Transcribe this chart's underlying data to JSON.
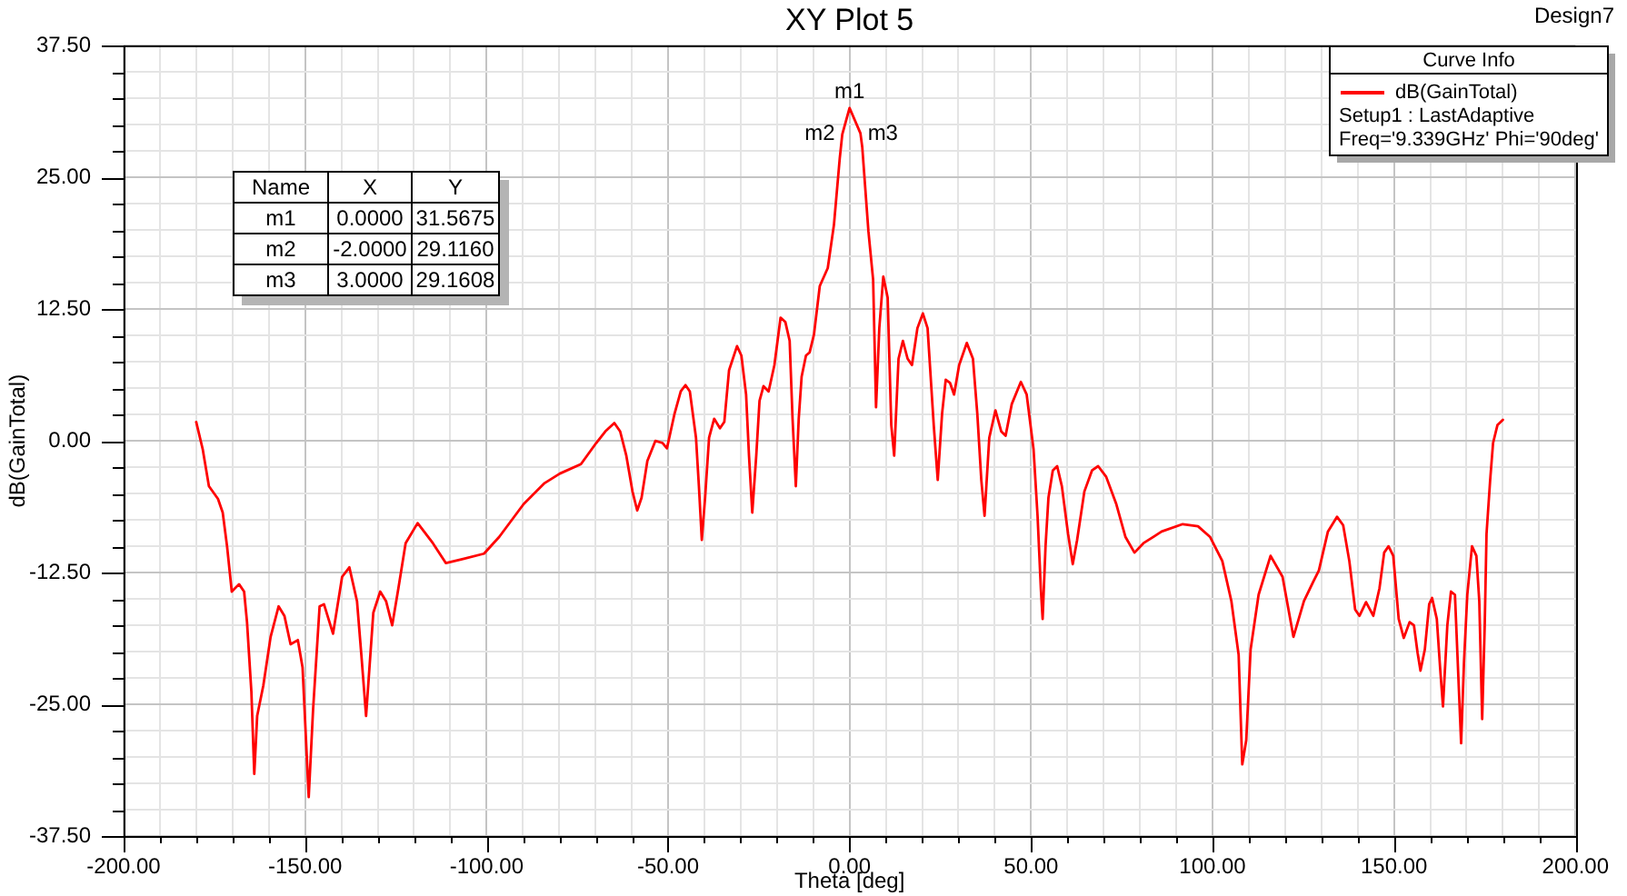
{
  "chart_data": {
    "type": "line",
    "title": "XY Plot 5",
    "subtitle": "Design7",
    "xlabel": "Theta [deg]",
    "ylabel": "dB(GainTotal)",
    "legend_title": "Curve Info",
    "legend": "top right",
    "grid": true,
    "xlim": [
      -200,
      200
    ],
    "ylim": [
      -37.5,
      37.5
    ],
    "xticks": [
      {
        "value": -200,
        "label": "-200.00"
      },
      {
        "value": -190,
        "label": null
      },
      {
        "value": -180,
        "label": null
      },
      {
        "value": -170,
        "label": null
      },
      {
        "value": -160,
        "label": null
      },
      {
        "value": -150,
        "label": "-150.00"
      },
      {
        "value": -140,
        "label": null
      },
      {
        "value": -130,
        "label": null
      },
      {
        "value": -120,
        "label": null
      },
      {
        "value": -110,
        "label": null
      },
      {
        "value": -100,
        "label": "-100.00"
      },
      {
        "value": -90,
        "label": null
      },
      {
        "value": -80,
        "label": null
      },
      {
        "value": -70,
        "label": null
      },
      {
        "value": -60,
        "label": null
      },
      {
        "value": -50,
        "label": "-50.00"
      },
      {
        "value": -40,
        "label": null
      },
      {
        "value": -30,
        "label": null
      },
      {
        "value": -20,
        "label": null
      },
      {
        "value": -10,
        "label": null
      },
      {
        "value": 0,
        "label": "0.00"
      },
      {
        "value": 10,
        "label": null
      },
      {
        "value": 20,
        "label": null
      },
      {
        "value": 30,
        "label": null
      },
      {
        "value": 40,
        "label": null
      },
      {
        "value": 50,
        "label": "50.00"
      },
      {
        "value": 60,
        "label": null
      },
      {
        "value": 70,
        "label": null
      },
      {
        "value": 80,
        "label": null
      },
      {
        "value": 90,
        "label": null
      },
      {
        "value": 100,
        "label": "100.00"
      },
      {
        "value": 110,
        "label": null
      },
      {
        "value": 120,
        "label": null
      },
      {
        "value": 130,
        "label": null
      },
      {
        "value": 140,
        "label": null
      },
      {
        "value": 150,
        "label": "150.00"
      },
      {
        "value": 160,
        "label": null
      },
      {
        "value": 170,
        "label": null
      },
      {
        "value": 180,
        "label": null
      },
      {
        "value": 190,
        "label": null
      },
      {
        "value": 200,
        "label": "200.00"
      }
    ],
    "yticks": [
      {
        "value": -37.5,
        "label": "-37.50"
      },
      {
        "value": -35,
        "label": null
      },
      {
        "value": -32.5,
        "label": null
      },
      {
        "value": -30,
        "label": null
      },
      {
        "value": -27.5,
        "label": null
      },
      {
        "value": -25,
        "label": "-25.00"
      },
      {
        "value": -22.5,
        "label": null
      },
      {
        "value": -20,
        "label": null
      },
      {
        "value": -17.5,
        "label": null
      },
      {
        "value": -15,
        "label": null
      },
      {
        "value": -12.5,
        "label": "-12.50"
      },
      {
        "value": -10,
        "label": null
      },
      {
        "value": -7.5,
        "label": null
      },
      {
        "value": -5,
        "label": null
      },
      {
        "value": -2.5,
        "label": null
      },
      {
        "value": 0,
        "label": "0.00"
      },
      {
        "value": 2.5,
        "label": null
      },
      {
        "value": 5,
        "label": null
      },
      {
        "value": 7.5,
        "label": null
      },
      {
        "value": 10,
        "label": null
      },
      {
        "value": 12.5,
        "label": "12.50"
      },
      {
        "value": 15,
        "label": null
      },
      {
        "value": 17.5,
        "label": null
      },
      {
        "value": 20,
        "label": null
      },
      {
        "value": 22.5,
        "label": null
      },
      {
        "value": 25,
        "label": "25.00"
      },
      {
        "value": 27.5,
        "label": null
      },
      {
        "value": 30,
        "label": null
      },
      {
        "value": 32.5,
        "label": null
      },
      {
        "value": 35,
        "label": null
      },
      {
        "value": 37.5,
        "label": "37.50"
      }
    ],
    "x": [
      -180,
      -178.2,
      -176.5,
      -174,
      -172.7,
      -171.5,
      -170.2,
      -168.2,
      -166.8,
      -166,
      -164.8,
      -164,
      -163.2,
      -161.5,
      -159.5,
      -157.3,
      -155.7,
      -154,
      -152,
      -150.7,
      -149,
      -147.8,
      -146,
      -144.8,
      -142.3,
      -139.8,
      -137.8,
      -135.7,
      -134.5,
      -133.2,
      -131.2,
      -129.3,
      -127.7,
      -126,
      -124.3,
      -122.3,
      -119,
      -114.8,
      -111.2,
      -106.5,
      -100.7,
      -96.5,
      -89.8,
      -84,
      -79.8,
      -74,
      -69.8,
      -67.3,
      -64.8,
      -63.2,
      -61.5,
      -59.8,
      -58.5,
      -57.3,
      -55.7,
      -53.5,
      -51.5,
      -50.3,
      -48.2,
      -46.5,
      -45.2,
      -44,
      -42.3,
      -41.5,
      -40.7,
      -39.8,
      -38.7,
      -37.3,
      -35.7,
      -34.5,
      -33.2,
      -31,
      -29.8,
      -28.5,
      -27.7,
      -26.8,
      -25.7,
      -24.8,
      -23.7,
      -22.3,
      -20.7,
      -19,
      -17.7,
      -16.5,
      -15.7,
      -14.8,
      -14,
      -13.2,
      -12,
      -11,
      -9.8,
      -8.2,
      -6,
      -4.3,
      -2.7,
      -2,
      0,
      3,
      3.5,
      5.2,
      6.5,
      7.3,
      8.2,
      9.3,
      10.5,
      11.5,
      12.3,
      13.5,
      14.7,
      16,
      17.2,
      18.7,
      20.2,
      21.5,
      23.2,
      24.3,
      25.5,
      26.5,
      27.7,
      28.8,
      30.2,
      32.3,
      34,
      35.2,
      36.3,
      37.2,
      38.5,
      40.2,
      41.8,
      43,
      44.7,
      47.2,
      48.8,
      50.7,
      51.8,
      52.7,
      53.2,
      54,
      54.8,
      56,
      57.2,
      58.5,
      60.2,
      61.5,
      62.7,
      64.7,
      66.8,
      68.5,
      70.7,
      73.5,
      76,
      78.5,
      81,
      86,
      91.8,
      96,
      99.3,
      102.7,
      105.2,
      107.2,
      108.2,
      109.3,
      110.5,
      112.7,
      116,
      119.3,
      122.3,
      125.2,
      127.7,
      129.3,
      131.8,
      134.3,
      136,
      137.7,
      139.3,
      140.5,
      142.3,
      144.3,
      146,
      147.3,
      148.5,
      149.8,
      151.3,
      152.7,
      154.3,
      155.5,
      156.5,
      157.3,
      158.5,
      159.7,
      160.5,
      161.8,
      162.7,
      163.5,
      164.7,
      165.7,
      166.8,
      167.7,
      168.5,
      169.3,
      170.2,
      171.5,
      172.7,
      173.5,
      174.3,
      175,
      175.5,
      176.5,
      177.3,
      178.5,
      180
    ],
    "series": [
      {
        "name": "dB(GainTotal)",
        "color": "#ff0000",
        "values": [
          1.8,
          -0.8,
          -4.3,
          -5.5,
          -6.8,
          -10,
          -14.3,
          -13.6,
          -14.3,
          -17.2,
          -23.8,
          -31.6,
          -26.1,
          -23.2,
          -18.6,
          -15.7,
          -16.6,
          -19.3,
          -18.9,
          -21.5,
          -33.8,
          -25.5,
          -15.7,
          -15.5,
          -18.3,
          -12.9,
          -12,
          -15.2,
          -20.3,
          -26.1,
          -16.3,
          -14.3,
          -15.2,
          -17.5,
          -14,
          -9.7,
          -7.8,
          -9.7,
          -11.6,
          -11.2,
          -10.7,
          -9.1,
          -6,
          -4,
          -3.1,
          -2.2,
          -0.2,
          0.9,
          1.7,
          0.9,
          -1.4,
          -4.8,
          -6.6,
          -5.4,
          -1.9,
          0,
          -0.2,
          -0.7,
          2.6,
          4.7,
          5.3,
          4.7,
          0.3,
          -4.3,
          -9.4,
          -5.4,
          0.3,
          2.1,
          1.2,
          1.8,
          6.7,
          9,
          8.1,
          4.4,
          -1.4,
          -6.8,
          -1.4,
          3.8,
          5.2,
          4.7,
          7.2,
          11.7,
          11.3,
          9.5,
          2.1,
          -4.3,
          2.1,
          6.1,
          8.1,
          8.4,
          10.1,
          14.7,
          16.4,
          20.5,
          26.8,
          29.1,
          31.6,
          29.2,
          27.9,
          19.9,
          15.3,
          3.2,
          10.7,
          15.6,
          13.6,
          1.5,
          -1.4,
          7.8,
          9.5,
          7.8,
          7.2,
          10.7,
          12.1,
          10.7,
          1.5,
          -3.7,
          2.6,
          5.8,
          5.5,
          4.4,
          7.2,
          9.3,
          7.8,
          2.6,
          -3.7,
          -7.1,
          0.3,
          2.9,
          0.9,
          0.5,
          3.5,
          5.6,
          4.4,
          -0.8,
          -7.1,
          -14,
          -16.9,
          -10,
          -5.4,
          -2.8,
          -2.4,
          -4.3,
          -8.8,
          -11.7,
          -9.4,
          -4.8,
          -2.8,
          -2.4,
          -3.4,
          -6,
          -9.1,
          -10.6,
          -9.7,
          -8.6,
          -7.9,
          -8.1,
          -9.1,
          -11.4,
          -15.2,
          -20.3,
          -30.7,
          -28.4,
          -19.8,
          -14.6,
          -10.9,
          -12.9,
          -18.6,
          -15.2,
          -13.4,
          -12.3,
          -8.6,
          -7.2,
          -8,
          -11.4,
          -16,
          -16.6,
          -15.3,
          -16.6,
          -14,
          -10.6,
          -10,
          -10.9,
          -16.9,
          -18.7,
          -17.2,
          -17.5,
          -20.1,
          -21.8,
          -19.8,
          -15.5,
          -14.9,
          -16.9,
          -21.5,
          -25.2,
          -17.5,
          -14.3,
          -14.6,
          -22.1,
          -28.7,
          -20.9,
          -14.6,
          -10,
          -10.9,
          -15.2,
          -26.4,
          -17.5,
          -8.8,
          -3.7,
          -0.2,
          1.5,
          2
        ]
      }
    ],
    "annotations": [
      {
        "text": "m1",
        "x": 0,
        "y": 31.5675
      },
      {
        "text": "m2",
        "x": -2,
        "y": 29.116
      },
      {
        "text": "m3",
        "x": 3,
        "y": 29.1608
      },
      "Setup1 : LastAdaptive",
      "Freq='9.339GHz' Phi='90deg'",
      "Name",
      "X",
      "Y",
      "m1",
      "0.0000",
      "31.5675",
      "m2",
      "-2.0000",
      "29.1160",
      "m3",
      "3.0000",
      "29.1608"
    ]
  }
}
